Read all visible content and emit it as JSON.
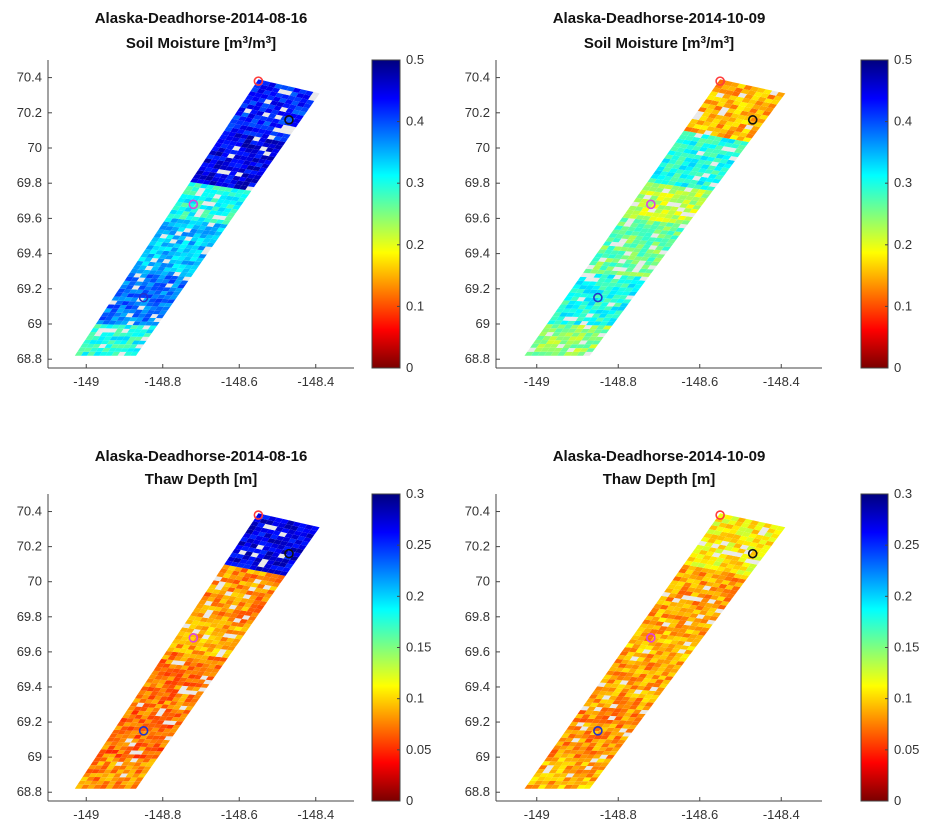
{
  "figure": {
    "layout": "2x2 grid of map panels with colorbars"
  },
  "colormap": [
    "#7a0000",
    "#ff0000",
    "#ff7f00",
    "#ffff00",
    "#7fff7f",
    "#00ffff",
    "#007fff",
    "#0000ff",
    "#00007f"
  ],
  "chart_data": [
    {
      "type": "heatmap",
      "title": "Alaska-Deadhorse-2014-08-16",
      "subtitle": "Soil Moisture [m³/m³]",
      "subtitle_parts": {
        "pre": "Soil Moisture [m",
        "sup1": "3",
        "mid": "/m",
        "sup2": "3",
        "post": "]"
      },
      "xlabel": "",
      "ylabel": "",
      "xlim": [
        -149.1,
        -148.3
      ],
      "ylim": [
        68.75,
        70.5
      ],
      "xticks": [
        -149,
        -148.8,
        -148.6,
        -148.4
      ],
      "xtick_labels": [
        "-149",
        "-148.8",
        "-148.6",
        "-148.4"
      ],
      "yticks": [
        68.8,
        69,
        69.2,
        69.4,
        69.6,
        69.8,
        70,
        70.2,
        70.4
      ],
      "ytick_labels": [
        "68.8",
        "69",
        "69.2",
        "69.4",
        "69.6",
        "69.8",
        "70",
        "70.2",
        "70.4"
      ],
      "colorbar": {
        "range": [
          0,
          0.5
        ],
        "ticks": [
          0,
          0.1,
          0.2,
          0.3,
          0.4,
          0.5
        ],
        "tick_labels": [
          "0",
          "0.1",
          "0.2",
          "0.3",
          "0.4",
          "0.5"
        ]
      },
      "swath_corners": [
        [
          -149.03,
          68.82
        ],
        [
          -148.87,
          68.82
        ],
        [
          -148.39,
          70.31
        ],
        [
          -148.55,
          70.39
        ]
      ],
      "value_bands": [
        {
          "lat": [
            68.8,
            69.0
          ],
          "value": 0.3
        },
        {
          "lat": [
            69.0,
            69.3
          ],
          "value": 0.38
        },
        {
          "lat": [
            69.3,
            69.6
          ],
          "value": 0.34
        },
        {
          "lat": [
            69.6,
            69.8
          ],
          "value": 0.3
        },
        {
          "lat": [
            69.8,
            70.1
          ],
          "value": 0.45
        },
        {
          "lat": [
            70.1,
            70.4
          ],
          "value": 0.42
        }
      ],
      "markers": [
        {
          "lon": -148.55,
          "lat": 70.38,
          "color": "#ff3b3b"
        },
        {
          "lon": -148.47,
          "lat": 70.16,
          "color": "#111111"
        },
        {
          "lon": -148.72,
          "lat": 69.68,
          "color": "#dd44dd"
        },
        {
          "lon": -148.85,
          "lat": 69.15,
          "color": "#2233cc"
        }
      ]
    },
    {
      "type": "heatmap",
      "title": "Alaska-Deadhorse-2014-10-09",
      "subtitle": "Soil Moisture [m³/m³]",
      "subtitle_parts": {
        "pre": "Soil Moisture [m",
        "sup1": "3",
        "mid": "/m",
        "sup2": "3",
        "post": "]"
      },
      "xlabel": "",
      "ylabel": "",
      "xlim": [
        -149.1,
        -148.3
      ],
      "ylim": [
        68.75,
        70.5
      ],
      "xticks": [
        -149,
        -148.8,
        -148.6,
        -148.4
      ],
      "xtick_labels": [
        "-149",
        "-148.8",
        "-148.6",
        "-148.4"
      ],
      "yticks": [
        68.8,
        69,
        69.2,
        69.4,
        69.6,
        69.8,
        70,
        70.2,
        70.4
      ],
      "ytick_labels": [
        "68.8",
        "69",
        "69.2",
        "69.4",
        "69.6",
        "69.8",
        "70",
        "70.2",
        "70.4"
      ],
      "colorbar": {
        "range": [
          0,
          0.5
        ],
        "ticks": [
          0,
          0.1,
          0.2,
          0.3,
          0.4,
          0.5
        ],
        "tick_labels": [
          "0",
          "0.1",
          "0.2",
          "0.3",
          "0.4",
          "0.5"
        ]
      },
      "swath_corners": [
        [
          -149.03,
          68.82
        ],
        [
          -148.87,
          68.82
        ],
        [
          -148.39,
          70.31
        ],
        [
          -148.55,
          70.39
        ]
      ],
      "value_bands": [
        {
          "lat": [
            68.8,
            69.0
          ],
          "value": 0.24
        },
        {
          "lat": [
            69.0,
            69.3
          ],
          "value": 0.3
        },
        {
          "lat": [
            69.3,
            69.6
          ],
          "value": 0.26
        },
        {
          "lat": [
            69.6,
            69.8
          ],
          "value": 0.22
        },
        {
          "lat": [
            69.8,
            70.1
          ],
          "value": 0.3
        },
        {
          "lat": [
            70.1,
            70.4
          ],
          "value": 0.15
        }
      ],
      "markers": [
        {
          "lon": -148.55,
          "lat": 70.38,
          "color": "#ff3b3b"
        },
        {
          "lon": -148.47,
          "lat": 70.16,
          "color": "#111111"
        },
        {
          "lon": -148.72,
          "lat": 69.68,
          "color": "#dd44dd"
        },
        {
          "lon": -148.85,
          "lat": 69.15,
          "color": "#2233cc"
        }
      ]
    },
    {
      "type": "heatmap",
      "title": "Alaska-Deadhorse-2014-08-16",
      "subtitle": "Thaw Depth [m]",
      "subtitle_parts": {
        "pre": "Thaw Depth [m]",
        "sup1": "",
        "mid": "",
        "sup2": "",
        "post": ""
      },
      "xlabel": "",
      "ylabel": "",
      "xlim": [
        -149.1,
        -148.3
      ],
      "ylim": [
        68.75,
        70.5
      ],
      "xticks": [
        -149,
        -148.8,
        -148.6,
        -148.4
      ],
      "xtick_labels": [
        "-149",
        "-148.8",
        "-148.6",
        "-148.4"
      ],
      "yticks": [
        68.8,
        69,
        69.2,
        69.4,
        69.6,
        69.8,
        70,
        70.2,
        70.4
      ],
      "ytick_labels": [
        "68.8",
        "69",
        "69.2",
        "69.4",
        "69.6",
        "69.8",
        "70",
        "70.2",
        "70.4"
      ],
      "colorbar": {
        "range": [
          0,
          0.3
        ],
        "ticks": [
          0,
          0.05,
          0.1,
          0.15,
          0.2,
          0.25,
          0.3
        ],
        "tick_labels": [
          "0",
          "0.05",
          "0.1",
          "0.15",
          "0.2",
          "0.25",
          "0.3"
        ]
      },
      "swath_corners": [
        [
          -149.03,
          68.82
        ],
        [
          -148.87,
          68.82
        ],
        [
          -148.39,
          70.31
        ],
        [
          -148.55,
          70.39
        ]
      ],
      "value_bands": [
        {
          "lat": [
            68.8,
            69.0
          ],
          "value": 0.08
        },
        {
          "lat": [
            69.0,
            69.3
          ],
          "value": 0.07
        },
        {
          "lat": [
            69.3,
            69.6
          ],
          "value": 0.075
        },
        {
          "lat": [
            69.6,
            69.8
          ],
          "value": 0.09
        },
        {
          "lat": [
            69.8,
            70.1
          ],
          "value": 0.08
        },
        {
          "lat": [
            70.1,
            70.4
          ],
          "value": 0.27
        }
      ],
      "markers": [
        {
          "lon": -148.55,
          "lat": 70.38,
          "color": "#ff3b3b"
        },
        {
          "lon": -148.47,
          "lat": 70.16,
          "color": "#111111"
        },
        {
          "lon": -148.72,
          "lat": 69.68,
          "color": "#dd44dd"
        },
        {
          "lon": -148.85,
          "lat": 69.15,
          "color": "#2233cc"
        }
      ]
    },
    {
      "type": "heatmap",
      "title": "Alaska-Deadhorse-2014-10-09",
      "subtitle": "Thaw Depth [m]",
      "subtitle_parts": {
        "pre": "Thaw Depth [m]",
        "sup1": "",
        "mid": "",
        "sup2": "",
        "post": ""
      },
      "xlabel": "",
      "ylabel": "",
      "xlim": [
        -149.1,
        -148.3
      ],
      "ylim": [
        68.75,
        70.5
      ],
      "xticks": [
        -149,
        -148.8,
        -148.6,
        -148.4
      ],
      "xtick_labels": [
        "-149",
        "-148.8",
        "-148.6",
        "-148.4"
      ],
      "yticks": [
        68.8,
        69,
        69.2,
        69.4,
        69.6,
        69.8,
        70,
        70.2,
        70.4
      ],
      "ytick_labels": [
        "68.8",
        "69",
        "69.2",
        "69.4",
        "69.6",
        "69.8",
        "70",
        "70.2",
        "70.4"
      ],
      "colorbar": {
        "range": [
          0,
          0.3
        ],
        "ticks": [
          0,
          0.05,
          0.1,
          0.15,
          0.2,
          0.25,
          0.3
        ],
        "tick_labels": [
          "0",
          "0.05",
          "0.1",
          "0.15",
          "0.2",
          "0.25",
          "0.3"
        ]
      },
      "swath_corners": [
        [
          -149.03,
          68.82
        ],
        [
          -148.87,
          68.82
        ],
        [
          -148.39,
          70.31
        ],
        [
          -148.55,
          70.39
        ]
      ],
      "value_bands": [
        {
          "lat": [
            68.8,
            69.0
          ],
          "value": 0.09
        },
        {
          "lat": [
            69.0,
            69.3
          ],
          "value": 0.08
        },
        {
          "lat": [
            69.3,
            69.6
          ],
          "value": 0.085
        },
        {
          "lat": [
            69.6,
            69.8
          ],
          "value": 0.09
        },
        {
          "lat": [
            69.8,
            70.1
          ],
          "value": 0.085
        },
        {
          "lat": [
            70.1,
            70.4
          ],
          "value": 0.11
        }
      ],
      "markers": [
        {
          "lon": -148.55,
          "lat": 70.38,
          "color": "#ff3b3b"
        },
        {
          "lon": -148.47,
          "lat": 70.16,
          "color": "#111111"
        },
        {
          "lon": -148.72,
          "lat": 69.68,
          "color": "#dd44dd"
        },
        {
          "lon": -148.85,
          "lat": 69.15,
          "color": "#2233cc"
        }
      ]
    }
  ]
}
